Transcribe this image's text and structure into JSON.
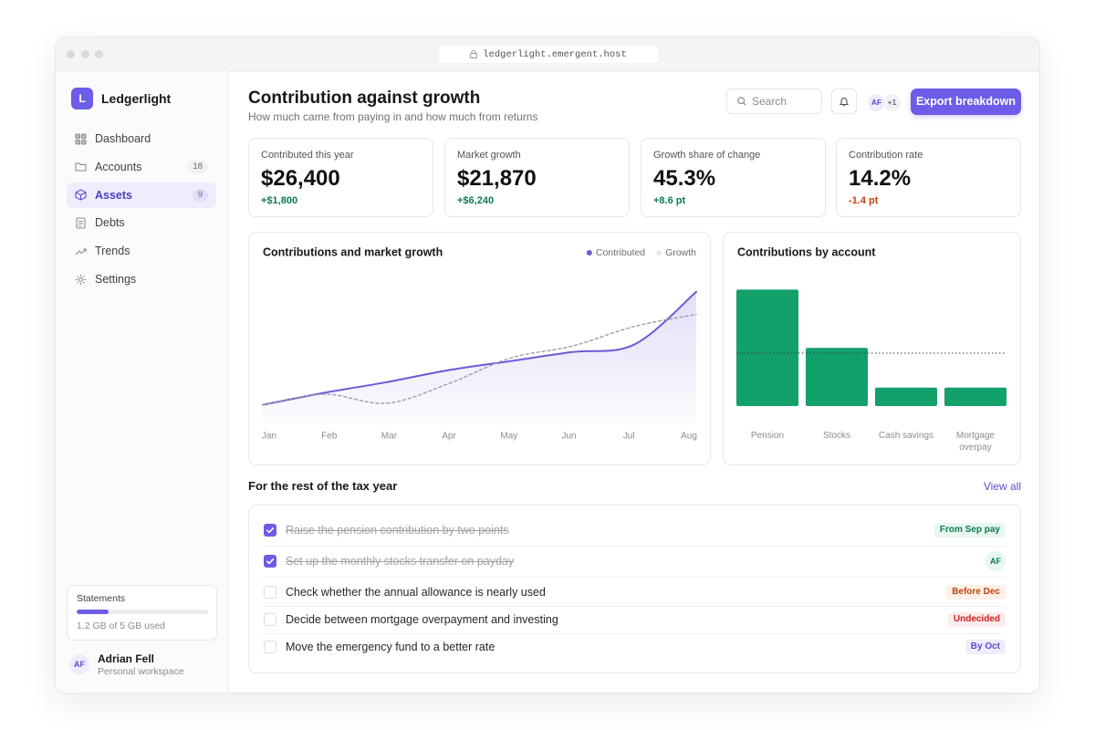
{
  "browser": {
    "url": "ledgerlight.emergent.host"
  },
  "sidebar": {
    "logo": "L",
    "brand": "Ledgerlight",
    "nav": [
      {
        "label": "Dashboard"
      },
      {
        "label": "Accounts",
        "badge": 18
      },
      {
        "label": "Assets",
        "badge": 9,
        "active": true
      },
      {
        "label": "Debts"
      },
      {
        "label": "Trends"
      },
      {
        "label": "Settings"
      }
    ],
    "storage": {
      "title": "Statements",
      "used": 1.2,
      "total": 5,
      "caption": "1.2 GB of 5 GB used"
    },
    "user": {
      "initials": "AF",
      "name": "Adrian Fell",
      "workspace": "Personal workspace"
    }
  },
  "header": {
    "title": "Contribution against growth",
    "subtitle": "How much came from paying in and how much from returns",
    "search": "Search",
    "avatars": [
      "AF",
      "+1"
    ],
    "action": "Export breakdown"
  },
  "kpis": [
    {
      "label": "Contributed this year",
      "value": "$26,400",
      "delta": "+$1,800",
      "tone": "up"
    },
    {
      "label": "Market growth",
      "value": "$21,870",
      "delta": "+$6,240",
      "tone": "up"
    },
    {
      "label": "Growth share of change",
      "value": "45.3%",
      "delta": "+8.6 pt",
      "tone": "up"
    },
    {
      "label": "Contribution rate",
      "value": "14.2%",
      "delta": "-1.4 pt",
      "tone": "down"
    }
  ],
  "chart_data": [
    {
      "type": "line",
      "title": "Contributions and market growth",
      "categories": [
        "Jan",
        "Feb",
        "Mar",
        "Apr",
        "May",
        "Jun",
        "Jul",
        "Aug"
      ],
      "series": [
        {
          "name": "Contributed",
          "color": "#6b5bd6",
          "values": [
            13,
            21,
            28,
            36,
            42,
            48,
            53,
            88
          ],
          "area": true
        },
        {
          "name": "Growth",
          "color": "#9d9da8",
          "values": [
            13,
            20,
            14,
            27,
            44,
            52,
            65,
            73
          ],
          "dashed": true
        }
      ],
      "ylim": [
        0,
        100
      ],
      "legend": "top-right"
    },
    {
      "type": "bar",
      "title": "Contributions by account",
      "categories": [
        "Pension",
        "Stocks",
        "Cash savings",
        "Mortgage overpay"
      ],
      "values": [
        88,
        44,
        14,
        14
      ],
      "color": "#12a06b",
      "reference_line": 40,
      "ylim": [
        0,
        100
      ]
    }
  ],
  "tasks": {
    "title": "For the rest of the tax year",
    "link": "View all",
    "items": [
      {
        "text": "Raise the pension contribution by two points",
        "done": true,
        "tag": "From Sep pay",
        "tone": "green"
      },
      {
        "text": "Set up the monthly stocks transfer on payday",
        "done": true,
        "tag": "AF",
        "tone": "avatar"
      },
      {
        "text": "Check whether the annual allowance is nearly used",
        "done": false,
        "tag": "Before Dec",
        "tone": "orange"
      },
      {
        "text": "Decide between mortgage overpayment and investing",
        "done": false,
        "tag": "Undecided",
        "tone": "red"
      },
      {
        "text": "Move the emergency fund to a better rate",
        "done": false,
        "tag": "By Oct",
        "tone": "purple"
      }
    ]
  }
}
